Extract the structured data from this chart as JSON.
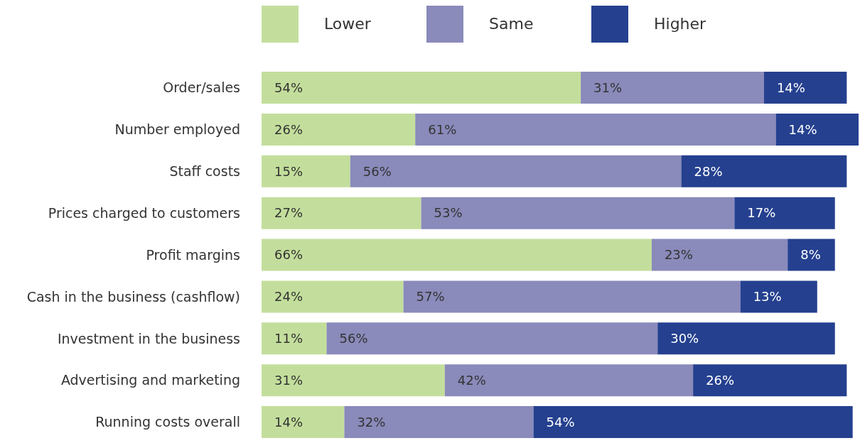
{
  "chart_data": {
    "type": "bar",
    "orientation": "horizontal",
    "stacked": true,
    "legend": "top",
    "categories": [
      "Order/sales",
      "Number employed",
      "Staff costs",
      "Prices charged to customers",
      "Profit margins",
      "Cash in the business (cashflow)",
      "Investment in the business",
      "Advertising and marketing",
      "Running costs overall"
    ],
    "series": [
      {
        "name": "Lower",
        "color": "#c3de9c",
        "values": [
          54,
          26,
          15,
          27,
          66,
          24,
          11,
          31,
          14
        ],
        "value_labels": [
          "54%",
          "26%",
          "15%",
          "27%",
          "66%",
          "24%",
          "11%",
          "31%",
          "14%"
        ]
      },
      {
        "name": "Same",
        "color": "#8a8abb",
        "values": [
          31,
          61,
          56,
          53,
          23,
          57,
          56,
          42,
          32
        ],
        "value_labels": [
          "31%",
          "61%",
          "56%",
          "53%",
          "23%",
          "57%",
          "56%",
          "42%",
          "32%"
        ]
      },
      {
        "name": "Higher",
        "color": "#25408f",
        "values": [
          14,
          14,
          28,
          17,
          8,
          13,
          30,
          26,
          54
        ],
        "value_labels": [
          "14%",
          "14%",
          "28%",
          "17%",
          "8%",
          "13%",
          "30%",
          "26%",
          "54%"
        ]
      }
    ]
  }
}
